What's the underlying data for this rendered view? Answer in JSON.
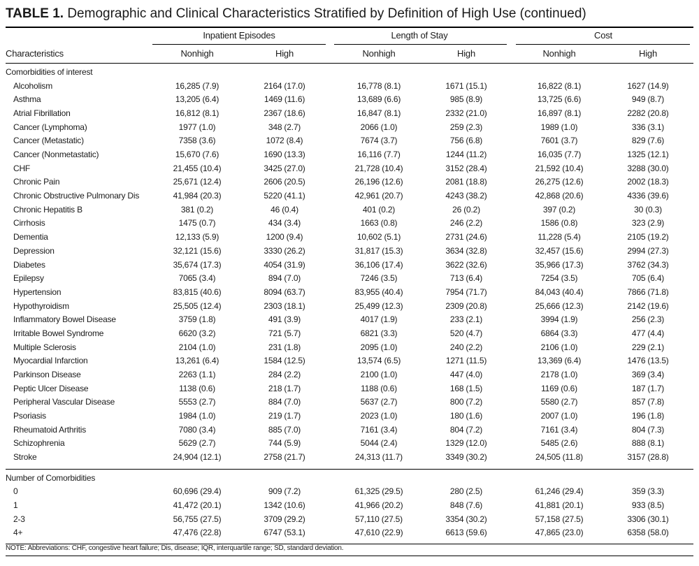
{
  "title": {
    "label": "TABLE 1.",
    "text": "Demographic and Clinical Characteristics Stratified by Definition of High Use (continued)"
  },
  "header": {
    "characteristics": "Characteristics",
    "groups": [
      {
        "label": "Inpatient Episodes",
        "sub": [
          "Nonhigh",
          "High"
        ]
      },
      {
        "label": "Length of Stay",
        "sub": [
          "Nonhigh",
          "High"
        ]
      },
      {
        "label": "Cost",
        "sub": [
          "Nonhigh",
          "High"
        ]
      }
    ]
  },
  "sections": [
    {
      "label": "Comorbidities of interest",
      "rows": [
        {
          "name": "Alcoholism",
          "values": [
            "16,285 (7.9)",
            "2164 (17.0)",
            "16,778 (8.1)",
            "1671 (15.1)",
            "16,822 (8.1)",
            "1627 (14.9)"
          ]
        },
        {
          "name": "Asthma",
          "values": [
            "13,205 (6.4)",
            "1469 (11.6)",
            "13,689 (6.6)",
            "985 (8.9)",
            "13,725 (6.6)",
            "949 (8.7)"
          ]
        },
        {
          "name": "Atrial Fibrillation",
          "values": [
            "16,812 (8.1)",
            "2367 (18.6)",
            "16,847 (8.1)",
            "2332 (21.0)",
            "16,897 (8.1)",
            "2282 (20.8)"
          ]
        },
        {
          "name": "Cancer (Lymphoma)",
          "values": [
            "1977 (1.0)",
            "348 (2.7)",
            "2066 (1.0)",
            "259 (2.3)",
            "1989 (1.0)",
            "336 (3.1)"
          ]
        },
        {
          "name": "Cancer (Metastatic)",
          "values": [
            "7358 (3.6)",
            "1072 (8.4)",
            "7674 (3.7)",
            "756 (6.8)",
            "7601 (3.7)",
            "829 (7.6)"
          ]
        },
        {
          "name": "Cancer (Nonmetastatic)",
          "values": [
            "15,670 (7.6)",
            "1690 (13.3)",
            "16,116 (7.7)",
            "1244 (11.2)",
            "16,035 (7.7)",
            "1325 (12.1)"
          ]
        },
        {
          "name": "CHF",
          "values": [
            "21,455 (10.4)",
            "3425 (27.0)",
            "21,728 (10.4)",
            "3152 (28.4)",
            "21,592 (10.4)",
            "3288 (30.0)"
          ]
        },
        {
          "name": "Chronic Pain",
          "values": [
            "25,671 (12.4)",
            "2606 (20.5)",
            "26,196 (12.6)",
            "2081 (18.8)",
            "26,275 (12.6)",
            "2002 (18.3)"
          ]
        },
        {
          "name": "Chronic Obstructive Pulmonary Dis",
          "values": [
            "41,984 (20.3)",
            "5220 (41.1)",
            "42,961 (20.7)",
            "4243 (38.2)",
            "42,868 (20.6)",
            "4336 (39.6)"
          ]
        },
        {
          "name": "Chronic Hepatitis B",
          "values": [
            "381 (0.2)",
            "46 (0.4)",
            "401 (0.2)",
            "26 (0.2)",
            "397 (0.2)",
            "30 (0.3)"
          ]
        },
        {
          "name": "Cirrhosis",
          "values": [
            "1475 (0.7)",
            "434 (3.4)",
            "1663 (0.8)",
            "246 (2.2)",
            "1586 (0.8)",
            "323 (2.9)"
          ]
        },
        {
          "name": "Dementia",
          "values": [
            "12,133 (5.9)",
            "1200 (9.4)",
            "10,602 (5.1)",
            "2731 (24.6)",
            "11,228 (5.4)",
            "2105 (19.2)"
          ]
        },
        {
          "name": "Depression",
          "values": [
            "32,121 (15.6)",
            "3330 (26.2)",
            "31,817 (15.3)",
            "3634 (32.8)",
            "32,457 (15.6)",
            "2994 (27.3)"
          ]
        },
        {
          "name": "Diabetes",
          "values": [
            "35,674 (17.3)",
            "4054 (31.9)",
            "36,106 (17.4)",
            "3622 (32.6)",
            "35,966 (17.3)",
            "3762 (34.3)"
          ]
        },
        {
          "name": "Epilepsy",
          "values": [
            "7065 (3.4)",
            "894 (7.0)",
            "7246 (3.5)",
            "713 (6.4)",
            "7254 (3.5)",
            "705 (6.4)"
          ]
        },
        {
          "name": "Hypertension",
          "values": [
            "83,815 (40.6)",
            "8094 (63.7)",
            "83,955 (40.4)",
            "7954 (71.7)",
            "84,043 (40.4)",
            "7866 (71.8)"
          ]
        },
        {
          "name": "Hypothyroidism",
          "values": [
            "25,505 (12.4)",
            "2303 (18.1)",
            "25,499 (12.3)",
            "2309 (20.8)",
            "25,666 (12.3)",
            "2142 (19.6)"
          ]
        },
        {
          "name": "Inflammatory Bowel Disease",
          "values": [
            "3759 (1.8)",
            "491 (3.9)",
            "4017 (1.9)",
            "233 (2.1)",
            "3994 (1.9)",
            "256 (2.3)"
          ]
        },
        {
          "name": "Irritable Bowel Syndrome",
          "values": [
            "6620 (3.2)",
            "721 (5.7)",
            "6821 (3.3)",
            "520 (4.7)",
            "6864 (3.3)",
            "477 (4.4)"
          ]
        },
        {
          "name": "Multiple Sclerosis",
          "values": [
            "2104 (1.0)",
            "231 (1.8)",
            "2095 (1.0)",
            "240 (2.2)",
            "2106 (1.0)",
            "229 (2.1)"
          ]
        },
        {
          "name": "Myocardial Infarction",
          "values": [
            "13,261 (6.4)",
            "1584 (12.5)",
            "13,574 (6.5)",
            "1271 (11.5)",
            "13,369 (6.4)",
            "1476 (13.5)"
          ]
        },
        {
          "name": "Parkinson Disease",
          "values": [
            "2263 (1.1)",
            "284 (2.2)",
            "2100 (1.0)",
            "447 (4.0)",
            "2178 (1.0)",
            "369 (3.4)"
          ]
        },
        {
          "name": "Peptic Ulcer Disease",
          "values": [
            "1138 (0.6)",
            "218 (1.7)",
            "1188 (0.6)",
            "168 (1.5)",
            "1169 (0.6)",
            "187 (1.7)"
          ]
        },
        {
          "name": "Peripheral Vascular Disease",
          "values": [
            "5553 (2.7)",
            "884 (7.0)",
            "5637 (2.7)",
            "800 (7.2)",
            "5580 (2.7)",
            "857 (7.8)"
          ]
        },
        {
          "name": "Psoriasis",
          "values": [
            "1984 (1.0)",
            "219 (1.7)",
            "2023 (1.0)",
            "180 (1.6)",
            "2007 (1.0)",
            "196 (1.8)"
          ]
        },
        {
          "name": "Rheumatoid Arthritis",
          "values": [
            "7080 (3.4)",
            "885 (7.0)",
            "7161 (3.4)",
            "804 (7.2)",
            "7161 (3.4)",
            "804 (7.3)"
          ]
        },
        {
          "name": "Schizophrenia",
          "values": [
            "5629 (2.7)",
            "744 (5.9)",
            "5044 (2.4)",
            "1329 (12.0)",
            "5485 (2.6)",
            "888 (8.1)"
          ]
        },
        {
          "name": "Stroke",
          "values": [
            "24,904 (12.1)",
            "2758 (21.7)",
            "24,313 (11.7)",
            "3349 (30.2)",
            "24,505 (11.8)",
            "3157 (28.8)"
          ]
        }
      ]
    },
    {
      "label": "Number of Comorbidities",
      "rows": [
        {
          "name": "0",
          "values": [
            "60,696 (29.4)",
            "909 (7.2)",
            "61,325 (29.5)",
            "280 (2.5)",
            "61,246 (29.4)",
            "359 (3.3)"
          ]
        },
        {
          "name": "1",
          "values": [
            "41,472 (20.1)",
            "1342 (10.6)",
            "41,966 (20.2)",
            "848 (7.6)",
            "41,881 (20.1)",
            "933 (8.5)"
          ]
        },
        {
          "name": "2-3",
          "values": [
            "56,755 (27.5)",
            "3709 (29.2)",
            "57,110 (27.5)",
            "3354 (30.2)",
            "57,158 (27.5)",
            "3306 (30.1)"
          ]
        },
        {
          "name": "4+",
          "values": [
            "47,476 (22.8)",
            "6747 (53.1)",
            "47,610 (22.9)",
            "6613 (59.6)",
            "47,865 (23.0)",
            "6358 (58.0)"
          ]
        }
      ]
    }
  ],
  "note": "NOTE: Abbreviations: CHF, congestive heart failure; Dis, disease; IQR, interquartile range; SD, standard deviation."
}
